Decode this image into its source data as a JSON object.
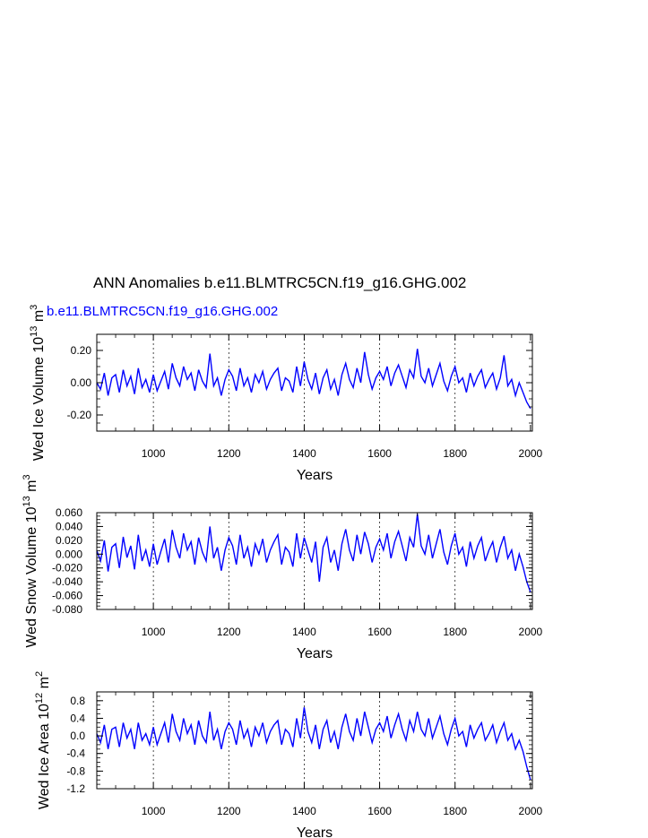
{
  "title": "ANN Anomalies b.e11.BLMTRC5CN.f19_g16.GHG.002",
  "subtitle": "b.e11.BLMTRC5CN.f19_g16.GHG.002",
  "series_color": "#0000ff",
  "chart_data": [
    {
      "type": "line",
      "ylabel": "Wed Ice Volume 10",
      "ylabel_exp": "13",
      "ylabel_unit": " m",
      "ylabel_unit_exp": "3",
      "xlabel": "Years",
      "xlim": [
        850,
        2005
      ],
      "ylim": [
        -0.3,
        0.3
      ],
      "xticks": [
        1000,
        1200,
        1400,
        1600,
        1800,
        2000
      ],
      "xtick_labels": [
        "1000",
        "1200",
        "1400",
        "1600",
        "1800",
        "2000"
      ],
      "yticks": [
        0.2,
        0.0,
        -0.2
      ],
      "ytick_labels": [
        "0.20",
        "0.00",
        "-0.20"
      ],
      "x_gridlines": [
        1000,
        1200,
        1400,
        1600,
        1800
      ],
      "series": [
        {
          "color": "#0000ff",
          "x": [
            850,
            860,
            870,
            880,
            890,
            900,
            910,
            920,
            930,
            940,
            950,
            960,
            970,
            980,
            990,
            1000,
            1010,
            1020,
            1030,
            1040,
            1050,
            1060,
            1070,
            1080,
            1090,
            1100,
            1110,
            1120,
            1130,
            1140,
            1150,
            1160,
            1170,
            1180,
            1190,
            1200,
            1210,
            1220,
            1230,
            1240,
            1250,
            1260,
            1270,
            1280,
            1290,
            1300,
            1310,
            1320,
            1330,
            1340,
            1350,
            1360,
            1370,
            1380,
            1390,
            1400,
            1410,
            1420,
            1430,
            1440,
            1450,
            1460,
            1470,
            1480,
            1490,
            1500,
            1510,
            1520,
            1530,
            1540,
            1550,
            1560,
            1570,
            1580,
            1590,
            1600,
            1610,
            1620,
            1630,
            1640,
            1650,
            1660,
            1670,
            1680,
            1690,
            1700,
            1710,
            1720,
            1730,
            1740,
            1750,
            1760,
            1770,
            1780,
            1790,
            1800,
            1810,
            1820,
            1830,
            1840,
            1850,
            1860,
            1870,
            1880,
            1890,
            1900,
            1910,
            1920,
            1930,
            1940,
            1950,
            1960,
            1970,
            1980,
            1990,
            2000
          ],
          "y": [
            0.0,
            -0.04,
            0.06,
            -0.08,
            0.03,
            0.05,
            -0.06,
            0.08,
            -0.02,
            0.04,
            -0.07,
            0.09,
            -0.03,
            0.02,
            -0.06,
            0.05,
            -0.05,
            0.01,
            0.07,
            -0.04,
            0.12,
            0.03,
            -0.02,
            0.1,
            0.02,
            0.06,
            -0.05,
            0.08,
            0.01,
            -0.03,
            0.18,
            -0.02,
            0.03,
            -0.08,
            0.02,
            0.08,
            0.04,
            -0.05,
            0.09,
            -0.02,
            0.03,
            -0.06,
            0.05,
            0.0,
            0.07,
            -0.04,
            0.02,
            0.06,
            0.09,
            -0.05,
            0.03,
            0.01,
            -0.06,
            0.1,
            -0.02,
            0.13,
            0.02,
            -0.04,
            0.06,
            -0.07,
            0.03,
            0.08,
            -0.04,
            0.02,
            -0.08,
            0.05,
            0.12,
            0.02,
            -0.03,
            0.09,
            0.0,
            0.19,
            0.05,
            -0.04,
            0.03,
            0.07,
            0.02,
            0.1,
            -0.02,
            0.06,
            0.11,
            0.04,
            -0.03,
            0.08,
            0.03,
            0.21,
            0.04,
            0.0,
            0.09,
            -0.02,
            0.05,
            0.12,
            0.01,
            -0.05,
            0.04,
            0.1,
            0.0,
            0.03,
            -0.06,
            0.06,
            -0.02,
            0.04,
            0.08,
            -0.03,
            0.02,
            0.06,
            -0.04,
            0.03,
            0.17,
            -0.02,
            0.02,
            -0.08,
            0.0,
            -0.06,
            -0.12,
            -0.16
          ]
        }
      ]
    },
    {
      "type": "line",
      "ylabel": "Wed Snow Volume 10",
      "ylabel_exp": "13",
      "ylabel_unit": " m",
      "ylabel_unit_exp": "3",
      "xlabel": "Years",
      "xlim": [
        850,
        2005
      ],
      "ylim": [
        -0.08,
        0.06
      ],
      "xticks": [
        1000,
        1200,
        1400,
        1600,
        1800,
        2000
      ],
      "xtick_labels": [
        "1000",
        "1200",
        "1400",
        "1600",
        "1800",
        "2000"
      ],
      "yticks": [
        0.06,
        0.04,
        0.02,
        0.0,
        -0.02,
        -0.04,
        -0.06,
        -0.08
      ],
      "ytick_labels": [
        "0.060",
        "0.040",
        "0.020",
        "0.000",
        "-0.020",
        "-0.040",
        "-0.060",
        "-0.080"
      ],
      "x_gridlines": [
        1000,
        1200,
        1400,
        1600,
        1800
      ],
      "series": [
        {
          "color": "#0000ff",
          "x": [
            850,
            860,
            870,
            880,
            890,
            900,
            910,
            920,
            930,
            940,
            950,
            960,
            970,
            980,
            990,
            1000,
            1010,
            1020,
            1030,
            1040,
            1050,
            1060,
            1070,
            1080,
            1090,
            1100,
            1110,
            1120,
            1130,
            1140,
            1150,
            1160,
            1170,
            1180,
            1190,
            1200,
            1210,
            1220,
            1230,
            1240,
            1250,
            1260,
            1270,
            1280,
            1290,
            1300,
            1310,
            1320,
            1330,
            1340,
            1350,
            1360,
            1370,
            1380,
            1390,
            1400,
            1410,
            1420,
            1430,
            1440,
            1450,
            1460,
            1470,
            1480,
            1490,
            1500,
            1510,
            1520,
            1530,
            1540,
            1550,
            1560,
            1570,
            1580,
            1590,
            1600,
            1610,
            1620,
            1630,
            1640,
            1650,
            1660,
            1670,
            1680,
            1690,
            1700,
            1710,
            1720,
            1730,
            1740,
            1750,
            1760,
            1770,
            1780,
            1790,
            1800,
            1810,
            1820,
            1830,
            1840,
            1850,
            1860,
            1870,
            1880,
            1890,
            1900,
            1910,
            1920,
            1930,
            1940,
            1950,
            1960,
            1970,
            1980,
            1990,
            2000
          ],
          "y": [
            0.005,
            -0.01,
            0.02,
            -0.025,
            0.01,
            0.015,
            -0.02,
            0.025,
            -0.005,
            0.012,
            -0.022,
            0.028,
            -0.01,
            0.006,
            -0.018,
            0.015,
            -0.015,
            0.004,
            0.022,
            -0.012,
            0.035,
            0.01,
            -0.006,
            0.03,
            0.006,
            0.018,
            -0.015,
            0.024,
            0.003,
            -0.01,
            0.04,
            -0.006,
            0.01,
            -0.024,
            0.006,
            0.024,
            0.012,
            -0.015,
            0.028,
            -0.006,
            0.01,
            -0.018,
            0.015,
            0.0,
            0.022,
            -0.012,
            0.006,
            0.018,
            0.028,
            -0.015,
            0.01,
            0.003,
            -0.018,
            0.03,
            -0.006,
            0.024,
            0.006,
            -0.012,
            0.018,
            -0.04,
            0.01,
            0.024,
            -0.012,
            0.006,
            -0.024,
            0.015,
            0.036,
            0.006,
            -0.01,
            0.028,
            0.0,
            0.032,
            0.015,
            -0.012,
            0.01,
            0.022,
            0.006,
            0.03,
            -0.006,
            0.018,
            0.033,
            0.012,
            -0.01,
            0.024,
            0.01,
            0.058,
            0.012,
            0.0,
            0.028,
            -0.006,
            0.015,
            0.036,
            0.003,
            -0.015,
            0.012,
            0.03,
            0.0,
            0.01,
            -0.018,
            0.018,
            -0.006,
            0.012,
            0.024,
            -0.01,
            0.006,
            0.018,
            -0.012,
            0.01,
            0.026,
            -0.006,
            0.006,
            -0.024,
            0.0,
            -0.018,
            -0.04,
            -0.055
          ]
        }
      ]
    },
    {
      "type": "line",
      "ylabel": "Wed Ice Area 10",
      "ylabel_exp": "12",
      "ylabel_unit": " m",
      "ylabel_unit_exp": "2",
      "xlabel": "Years",
      "xlim": [
        850,
        2005
      ],
      "ylim": [
        -1.2,
        1.0
      ],
      "xticks": [
        1000,
        1200,
        1400,
        1600,
        1800,
        2000
      ],
      "xtick_labels": [
        "1000",
        "1200",
        "1400",
        "1600",
        "1800",
        "2000"
      ],
      "yticks": [
        0.8,
        0.4,
        0.0,
        -0.4,
        -0.8,
        -1.2
      ],
      "ytick_labels": [
        "0.8",
        "0.4",
        "0.0",
        "-0.4",
        "-0.8",
        "-1.2"
      ],
      "x_gridlines": [
        1000,
        1200,
        1400,
        1600,
        1800
      ],
      "series": [
        {
          "color": "#0000ff",
          "x": [
            850,
            860,
            870,
            880,
            890,
            900,
            910,
            920,
            930,
            940,
            950,
            960,
            970,
            980,
            990,
            1000,
            1010,
            1020,
            1030,
            1040,
            1050,
            1060,
            1070,
            1080,
            1090,
            1100,
            1110,
            1120,
            1130,
            1140,
            1150,
            1160,
            1170,
            1180,
            1190,
            1200,
            1210,
            1220,
            1230,
            1240,
            1250,
            1260,
            1270,
            1280,
            1290,
            1300,
            1310,
            1320,
            1330,
            1340,
            1350,
            1360,
            1370,
            1380,
            1390,
            1400,
            1410,
            1420,
            1430,
            1440,
            1450,
            1460,
            1470,
            1480,
            1490,
            1500,
            1510,
            1520,
            1530,
            1540,
            1550,
            1560,
            1570,
            1580,
            1590,
            1600,
            1610,
            1620,
            1630,
            1640,
            1650,
            1660,
            1670,
            1680,
            1690,
            1700,
            1710,
            1720,
            1730,
            1740,
            1750,
            1760,
            1770,
            1780,
            1790,
            1800,
            1810,
            1820,
            1830,
            1840,
            1850,
            1860,
            1870,
            1880,
            1890,
            1900,
            1910,
            1920,
            1930,
            1940,
            1950,
            1960,
            1970,
            1980,
            1990,
            2000
          ],
          "y": [
            0.05,
            -0.15,
            0.25,
            -0.3,
            0.15,
            0.2,
            -0.25,
            0.3,
            -0.05,
            0.15,
            -0.3,
            0.3,
            -0.1,
            0.05,
            -0.2,
            0.2,
            -0.2,
            0.05,
            0.3,
            -0.15,
            0.5,
            0.1,
            -0.1,
            0.4,
            0.05,
            0.25,
            -0.2,
            0.35,
            0.0,
            -0.15,
            0.55,
            -0.1,
            0.15,
            -0.3,
            0.1,
            0.3,
            0.15,
            -0.2,
            0.35,
            -0.05,
            0.15,
            -0.25,
            0.2,
            0.0,
            0.3,
            -0.15,
            0.1,
            0.25,
            0.35,
            -0.2,
            0.15,
            0.05,
            -0.25,
            0.4,
            -0.05,
            0.65,
            0.1,
            -0.15,
            0.25,
            -0.3,
            0.15,
            0.35,
            -0.15,
            0.1,
            -0.3,
            0.2,
            0.5,
            0.1,
            -0.1,
            0.4,
            0.0,
            0.55,
            0.2,
            -0.15,
            0.15,
            0.3,
            0.1,
            0.45,
            -0.05,
            0.25,
            0.5,
            0.15,
            -0.1,
            0.35,
            0.1,
            0.55,
            0.15,
            0.0,
            0.4,
            -0.05,
            0.2,
            0.45,
            0.05,
            -0.2,
            0.15,
            0.4,
            0.0,
            0.1,
            -0.25,
            0.25,
            -0.05,
            0.15,
            0.3,
            -0.1,
            0.05,
            0.25,
            -0.15,
            0.1,
            0.3,
            -0.1,
            0.05,
            -0.3,
            -0.1,
            -0.35,
            -0.7,
            -1.0
          ]
        }
      ]
    }
  ]
}
